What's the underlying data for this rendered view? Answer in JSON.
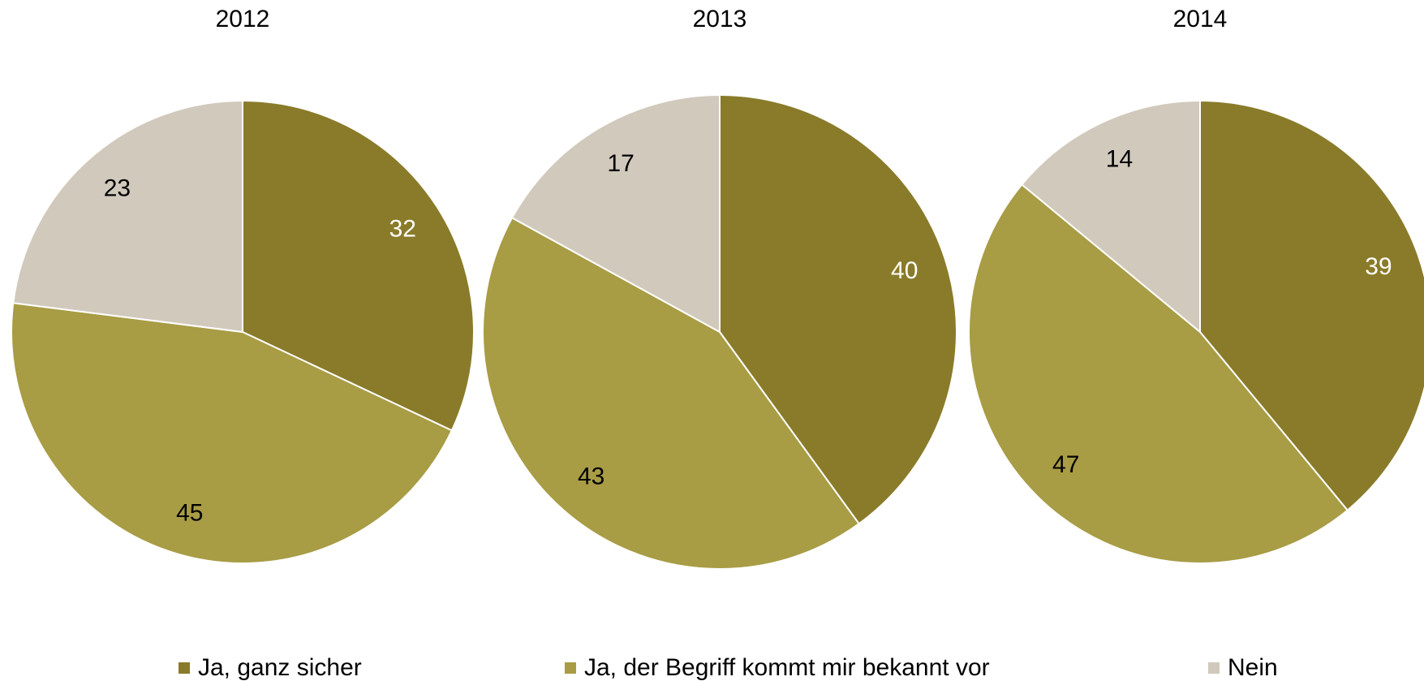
{
  "chart_data": [
    {
      "type": "pie",
      "title": "2012",
      "categories": [
        "Ja, ganz sicher",
        "Ja, der Begriff kommt mir bekannt vor",
        "Nein"
      ],
      "values": [
        32,
        45,
        23
      ],
      "colors": [
        "#8a7b2a",
        "#a89c45",
        "#d1c9bc"
      ],
      "label_colors": [
        "#ffffff",
        "#000000",
        "#000000"
      ]
    },
    {
      "type": "pie",
      "title": "2013",
      "categories": [
        "Ja, ganz sicher",
        "Ja, der Begriff kommt mir bekannt vor",
        "Nein"
      ],
      "values": [
        40,
        43,
        17
      ],
      "colors": [
        "#8a7b2a",
        "#a89c45",
        "#d1c9bc"
      ],
      "label_colors": [
        "#ffffff",
        "#000000",
        "#000000"
      ]
    },
    {
      "type": "pie",
      "title": "2014",
      "categories": [
        "Ja, ganz sicher",
        "Ja, der Begriff kommt mir bekannt vor",
        "Nein"
      ],
      "values": [
        39,
        47,
        14
      ],
      "colors": [
        "#8a7b2a",
        "#a89c45",
        "#d1c9bc"
      ],
      "label_colors": [
        "#ffffff",
        "#000000",
        "#000000"
      ]
    }
  ]
}
